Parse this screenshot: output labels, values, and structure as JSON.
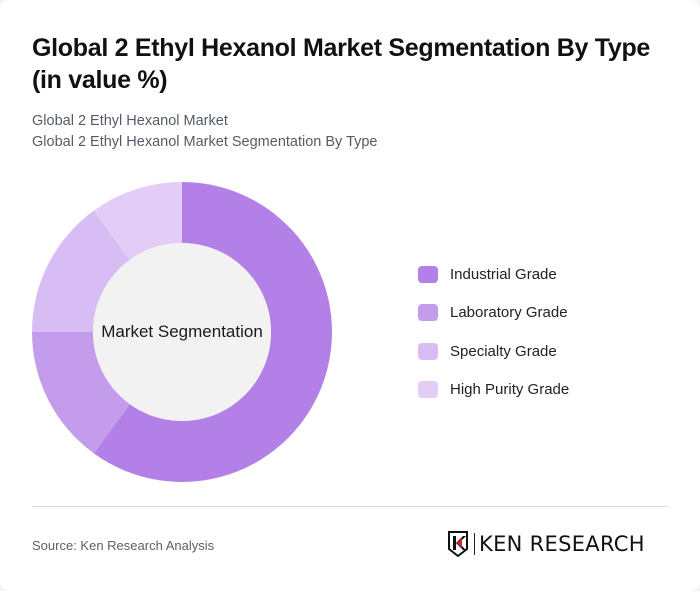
{
  "header": {
    "title": "Global 2 Ethyl Hexanol Market Segmentation By Type (in value %)",
    "subtitle_line1": "Global 2 Ethyl Hexanol Market",
    "subtitle_line2": "Global 2 Ethyl Hexanol Market Segmentation By Type"
  },
  "chart": {
    "center_label": "Market Segmentation"
  },
  "legend": {
    "items": [
      {
        "label": "Industrial Grade",
        "color": "#b380e8"
      },
      {
        "label": "Laboratory Grade",
        "color": "#c49cec"
      },
      {
        "label": "Specialty Grade",
        "color": "#d8bdf5"
      },
      {
        "label": "High Purity Grade",
        "color": "#e3cdf7"
      }
    ]
  },
  "footer": {
    "source": "Source: Ken Research Analysis",
    "logo_text": "KEN RESEARCH"
  },
  "chart_data": {
    "type": "pie",
    "variant": "donut",
    "title": "Global 2 Ethyl Hexanol Market Segmentation By Type (in value %)",
    "subtitle": "Global 2 Ethyl Hexanol Market Segmentation By Type",
    "center_label": "Market Segmentation",
    "categories": [
      "Industrial Grade",
      "Laboratory Grade",
      "Specialty Grade",
      "High Purity Grade"
    ],
    "values": [
      60,
      15,
      15,
      10
    ],
    "unit": "%",
    "colors": [
      "#b380e8",
      "#c49cec",
      "#d8bdf5",
      "#e3cdf7"
    ],
    "legend_position": "right",
    "start_angle": 0,
    "direction": "clockwise"
  }
}
